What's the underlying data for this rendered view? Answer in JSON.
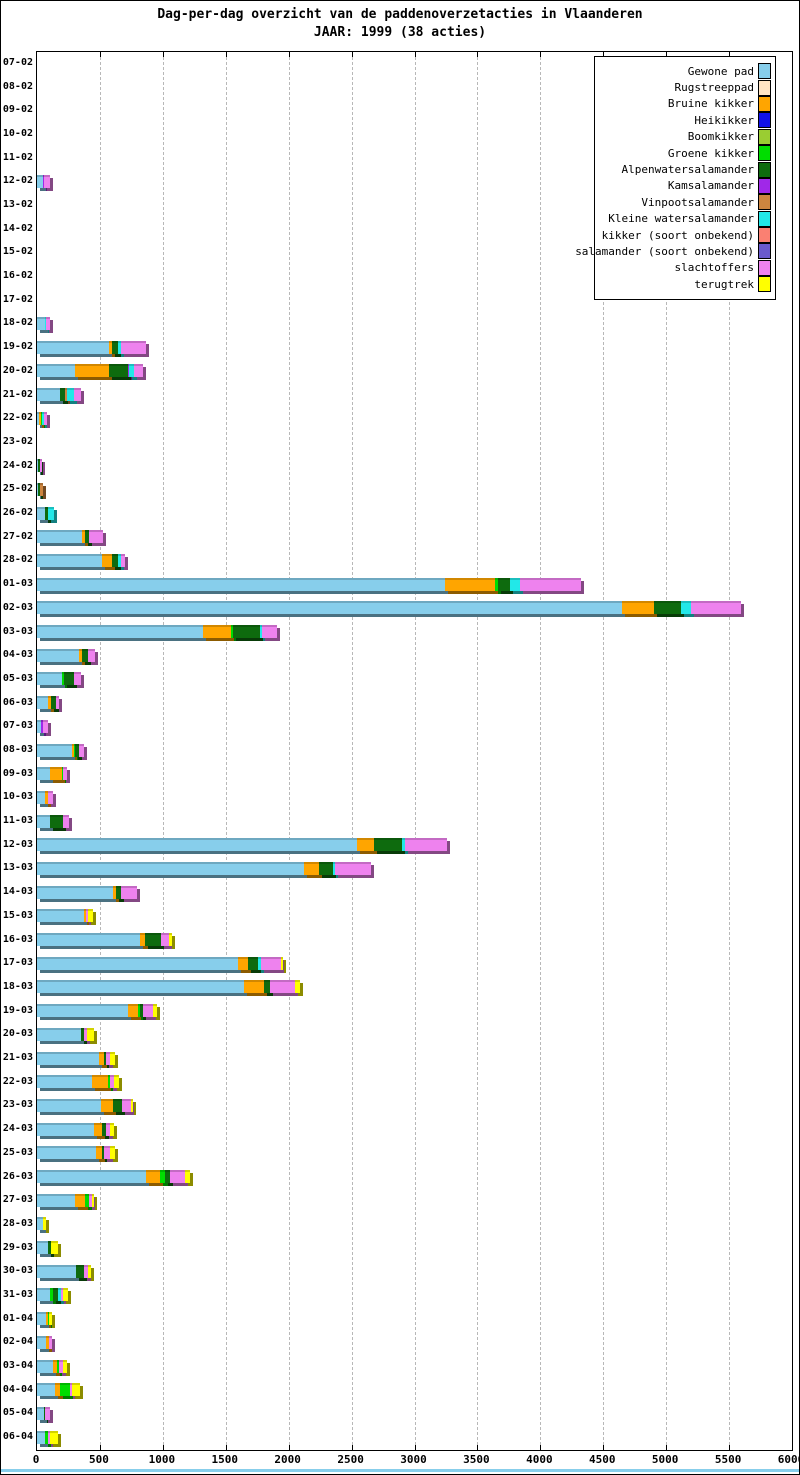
{
  "title": {
    "line1": "Dag-per-dag overzicht van de paddenoverzetacties in Vlaanderen",
    "line2": "JAAR: 1999 (38 acties)"
  },
  "axis": {
    "x_tick_labels": [
      "0",
      "500",
      "1000",
      "1500",
      "2000",
      "2500",
      "3000",
      "3500",
      "4000",
      "4500",
      "5000",
      "5500",
      "6000"
    ],
    "grid_color": "#b8b8b8"
  },
  "legend": {
    "items": [
      {
        "label": "Gewone pad",
        "color": "#87CEEB"
      },
      {
        "label": "Rugstreeppad",
        "color": "#FFE4C4"
      },
      {
        "label": "Bruine kikker",
        "color": "#FFA500"
      },
      {
        "label": "Heikikker",
        "color": "#1212E8"
      },
      {
        "label": "Boomkikker",
        "color": "#9ACD32"
      },
      {
        "label": "Groene kikker",
        "color": "#00DD00"
      },
      {
        "label": "Alpenwatersalamander",
        "color": "#0E6B0E"
      },
      {
        "label": "Kamsalamander",
        "color": "#A028E8"
      },
      {
        "label": "Vinpootsalamander",
        "color": "#CD853F"
      },
      {
        "label": "Kleine watersalamander",
        "color": "#22E8E8"
      },
      {
        "label": "kikker (soort onbekend)",
        "color": "#FA8072"
      },
      {
        "label": "salamander (soort onbekend)",
        "color": "#6A5ACD"
      },
      {
        "label": "slachtoffers",
        "color": "#EE82EE"
      },
      {
        "label": "terugtrek",
        "color": "#FFFF00"
      }
    ]
  },
  "chart_data": {
    "type": "bar",
    "orientation": "horizontal",
    "stacked": true,
    "title": "Dag-per-dag overzicht van de paddenoverzetacties in Vlaanderen",
    "subtitle": "JAAR: 1999 (38 acties)",
    "xlim": [
      0,
      6000
    ],
    "x_tick_step": 500,
    "grid": true,
    "legend_position": "top-right",
    "categories": [
      "07-02",
      "08-02",
      "09-02",
      "10-02",
      "11-02",
      "12-02",
      "13-02",
      "14-02",
      "15-02",
      "16-02",
      "17-02",
      "18-02",
      "19-02",
      "20-02",
      "21-02",
      "22-02",
      "23-02",
      "24-02",
      "25-02",
      "26-02",
      "27-02",
      "28-02",
      "01-03",
      "02-03",
      "03-03",
      "04-03",
      "05-03",
      "06-03",
      "07-03",
      "08-03",
      "09-03",
      "10-03",
      "11-03",
      "12-03",
      "13-03",
      "14-03",
      "15-03",
      "16-03",
      "17-03",
      "18-03",
      "19-03",
      "20-03",
      "21-03",
      "22-03",
      "23-03",
      "24-03",
      "25-03",
      "26-03",
      "27-03",
      "28-03",
      "29-03",
      "30-03",
      "31-03",
      "01-04",
      "02-04",
      "03-04",
      "04-04",
      "05-04",
      "06-04"
    ],
    "series": [
      {
        "name": "Gewone pad",
        "color": "#87CEEB",
        "values": [
          0,
          0,
          0,
          0,
          0,
          50,
          0,
          0,
          0,
          0,
          0,
          60,
          570,
          300,
          185,
          15,
          0,
          10,
          8,
          60,
          355,
          520,
          3240,
          4650,
          1320,
          330,
          200,
          85,
          35,
          275,
          105,
          60,
          105,
          2540,
          2125,
          600,
          370,
          820,
          1595,
          1645,
          725,
          350,
          490,
          435,
          510,
          455,
          470,
          865,
          300,
          45,
          85,
          310,
          105,
          70,
          70,
          130,
          145,
          55,
          60
        ]
      },
      {
        "name": "Rugstreeppad",
        "color": "#FFE4C4",
        "values": [
          0,
          0,
          0,
          0,
          0,
          0,
          0,
          0,
          0,
          0,
          0,
          0,
          0,
          0,
          0,
          0,
          0,
          0,
          0,
          0,
          0,
          0,
          0,
          0,
          0,
          0,
          0,
          0,
          0,
          0,
          0,
          0,
          0,
          0,
          0,
          0,
          0,
          0,
          0,
          0,
          0,
          0,
          0,
          0,
          0,
          0,
          0,
          0,
          0,
          0,
          0,
          0,
          0,
          0,
          0,
          0,
          0,
          0,
          0
        ]
      },
      {
        "name": "Bruine kikker",
        "color": "#FFA500",
        "values": [
          0,
          0,
          0,
          0,
          0,
          0,
          0,
          0,
          0,
          0,
          0,
          0,
          25,
          270,
          0,
          20,
          0,
          0,
          0,
          0,
          25,
          80,
          400,
          250,
          225,
          25,
          0,
          25,
          0,
          20,
          90,
          25,
          0,
          135,
          120,
          30,
          18,
          35,
          80,
          160,
          80,
          0,
          40,
          130,
          95,
          65,
          45,
          110,
          80,
          0,
          0,
          0,
          0,
          15,
          25,
          25,
          35,
          0,
          0
        ]
      },
      {
        "name": "Heikikker",
        "color": "#1212E8",
        "values": [
          0,
          0,
          0,
          0,
          0,
          0,
          0,
          0,
          0,
          0,
          0,
          0,
          0,
          0,
          0,
          0,
          0,
          0,
          0,
          0,
          0,
          0,
          0,
          0,
          0,
          0,
          0,
          0,
          0,
          0,
          0,
          0,
          0,
          0,
          0,
          0,
          0,
          0,
          0,
          0,
          0,
          0,
          0,
          0,
          0,
          0,
          0,
          0,
          0,
          0,
          0,
          0,
          0,
          0,
          0,
          0,
          0,
          0,
          0
        ]
      },
      {
        "name": "Boomkikker",
        "color": "#9ACD32",
        "values": [
          0,
          0,
          0,
          0,
          0,
          0,
          0,
          0,
          0,
          0,
          0,
          0,
          0,
          0,
          0,
          0,
          0,
          0,
          0,
          0,
          0,
          0,
          0,
          0,
          0,
          0,
          0,
          0,
          0,
          0,
          0,
          0,
          0,
          0,
          0,
          0,
          0,
          0,
          0,
          0,
          0,
          0,
          0,
          0,
          0,
          0,
          0,
          0,
          0,
          0,
          0,
          0,
          0,
          0,
          0,
          0,
          0,
          0,
          0
        ]
      },
      {
        "name": "Groene kikker",
        "color": "#00DD00",
        "values": [
          0,
          0,
          0,
          0,
          0,
          0,
          0,
          0,
          0,
          0,
          0,
          0,
          0,
          0,
          0,
          8,
          0,
          0,
          0,
          0,
          0,
          0,
          20,
          0,
          15,
          0,
          12,
          0,
          0,
          8,
          10,
          0,
          0,
          0,
          0,
          0,
          0,
          0,
          0,
          0,
          15,
          0,
          0,
          15,
          0,
          0,
          0,
          45,
          30,
          0,
          0,
          0,
          25,
          8,
          0,
          20,
          80,
          0,
          25
        ]
      },
      {
        "name": "Alpenwatersalamander",
        "color": "#0E6B0E",
        "values": [
          0,
          0,
          0,
          0,
          0,
          0,
          0,
          0,
          0,
          0,
          0,
          0,
          45,
          150,
          40,
          0,
          0,
          10,
          15,
          30,
          30,
          40,
          100,
          215,
          210,
          50,
          80,
          40,
          0,
          30,
          0,
          0,
          105,
          225,
          105,
          40,
          0,
          130,
          80,
          50,
          20,
          25,
          15,
          0,
          70,
          25,
          20,
          40,
          0,
          0,
          30,
          65,
          35,
          0,
          0,
          0,
          0,
          10,
          0
        ]
      },
      {
        "name": "Kamsalamander",
        "color": "#A028E8",
        "values": [
          0,
          0,
          0,
          0,
          0,
          8,
          0,
          0,
          0,
          0,
          0,
          0,
          0,
          8,
          0,
          0,
          0,
          0,
          0,
          0,
          0,
          0,
          0,
          0,
          0,
          0,
          0,
          0,
          15,
          0,
          0,
          0,
          0,
          0,
          0,
          0,
          0,
          0,
          0,
          0,
          0,
          0,
          0,
          0,
          0,
          0,
          0,
          0,
          0,
          0,
          0,
          0,
          0,
          0,
          0,
          0,
          0,
          0,
          0
        ]
      },
      {
        "name": "Vinpootsalamander",
        "color": "#CD853F",
        "values": [
          0,
          0,
          0,
          0,
          0,
          0,
          0,
          0,
          0,
          0,
          0,
          0,
          0,
          0,
          12,
          0,
          0,
          0,
          25,
          0,
          0,
          0,
          0,
          0,
          0,
          0,
          0,
          0,
          0,
          0,
          0,
          0,
          0,
          0,
          0,
          0,
          0,
          0,
          0,
          0,
          0,
          0,
          0,
          0,
          0,
          0,
          0,
          0,
          0,
          0,
          0,
          0,
          0,
          0,
          0,
          0,
          0,
          0,
          0
        ]
      },
      {
        "name": "Kleine watersalamander",
        "color": "#22E8E8",
        "values": [
          0,
          0,
          0,
          0,
          0,
          0,
          0,
          0,
          0,
          0,
          0,
          10,
          30,
          40,
          60,
          10,
          0,
          0,
          0,
          45,
          0,
          25,
          75,
          80,
          20,
          0,
          0,
          0,
          0,
          0,
          0,
          0,
          0,
          25,
          15,
          0,
          0,
          0,
          25,
          0,
          0,
          0,
          0,
          0,
          0,
          0,
          0,
          0,
          0,
          0,
          0,
          0,
          25,
          0,
          0,
          0,
          0,
          0,
          0
        ]
      },
      {
        "name": "kikker (soort onbekend)",
        "color": "#FA8072",
        "values": [
          0,
          0,
          0,
          0,
          0,
          0,
          0,
          0,
          0,
          0,
          0,
          0,
          0,
          0,
          0,
          0,
          0,
          0,
          0,
          0,
          0,
          0,
          0,
          0,
          0,
          0,
          0,
          0,
          0,
          0,
          0,
          0,
          0,
          0,
          0,
          0,
          0,
          0,
          0,
          0,
          0,
          0,
          0,
          0,
          0,
          0,
          0,
          0,
          0,
          0,
          0,
          0,
          0,
          0,
          0,
          0,
          0,
          0,
          0
        ]
      },
      {
        "name": "salamander (soort onbekend)",
        "color": "#6A5ACD",
        "values": [
          0,
          0,
          0,
          0,
          0,
          0,
          0,
          0,
          0,
          0,
          0,
          0,
          0,
          0,
          0,
          0,
          0,
          0,
          0,
          0,
          0,
          0,
          0,
          0,
          0,
          0,
          0,
          0,
          0,
          0,
          0,
          0,
          0,
          0,
          0,
          0,
          0,
          0,
          0,
          0,
          0,
          0,
          0,
          0,
          0,
          0,
          0,
          0,
          0,
          0,
          0,
          0,
          0,
          0,
          0,
          0,
          0,
          0,
          0
        ]
      },
      {
        "name": "slachtoffers",
        "color": "#EE82EE",
        "values": [
          0,
          0,
          0,
          0,
          0,
          45,
          0,
          0,
          0,
          0,
          0,
          35,
          200,
          75,
          55,
          25,
          0,
          20,
          0,
          0,
          115,
          35,
          490,
          400,
          120,
          55,
          60,
          25,
          35,
          40,
          35,
          40,
          45,
          330,
          290,
          125,
          15,
          65,
          160,
          195,
          80,
          20,
          35,
          30,
          70,
          35,
          45,
          120,
          25,
          0,
          0,
          30,
          20,
          0,
          28,
          32,
          18,
          40,
          20
        ]
      },
      {
        "name": "terugtrek",
        "color": "#FFFF00",
        "values": [
          0,
          0,
          0,
          0,
          0,
          0,
          0,
          0,
          0,
          0,
          0,
          0,
          0,
          0,
          0,
          0,
          0,
          0,
          0,
          0,
          0,
          0,
          0,
          0,
          0,
          0,
          0,
          0,
          0,
          0,
          0,
          0,
          0,
          0,
          0,
          0,
          45,
          25,
          15,
          40,
          35,
          55,
          40,
          40,
          15,
          30,
          40,
          40,
          15,
          30,
          55,
          25,
          35,
          27,
          0,
          35,
          62,
          0,
          65
        ]
      }
    ]
  }
}
